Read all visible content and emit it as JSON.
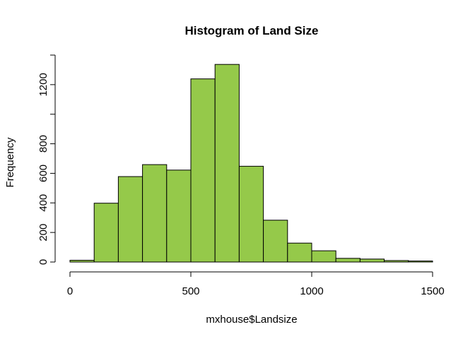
{
  "chart_data": {
    "type": "bar",
    "title": "Histogram of Land Size",
    "xlabel": "mxhouse$Landsize",
    "ylabel": "Frequency",
    "bar_color": "#95C94A",
    "bin_edges": [
      0,
      100,
      200,
      300,
      400,
      500,
      600,
      700,
      800,
      900,
      1000,
      1100,
      1200,
      1300,
      1400,
      1500
    ],
    "values": [
      12,
      398,
      578,
      659,
      622,
      1239,
      1337,
      648,
      283,
      128,
      76,
      25,
      20,
      10,
      7
    ],
    "xlim": [
      0,
      1500
    ],
    "ylim": [
      0,
      1400
    ],
    "x_ticks": [
      0,
      500,
      1000,
      1500
    ],
    "x_tick_labels": [
      "0",
      "500",
      "1000",
      "1500"
    ],
    "y_ticks": [
      0,
      200,
      400,
      600,
      800,
      1200
    ],
    "y_tick_labels": [
      "0",
      "200",
      "400",
      "600",
      "800",
      "1200"
    ],
    "y_axis_line_max": 1400,
    "grid": false,
    "legend": "none"
  }
}
